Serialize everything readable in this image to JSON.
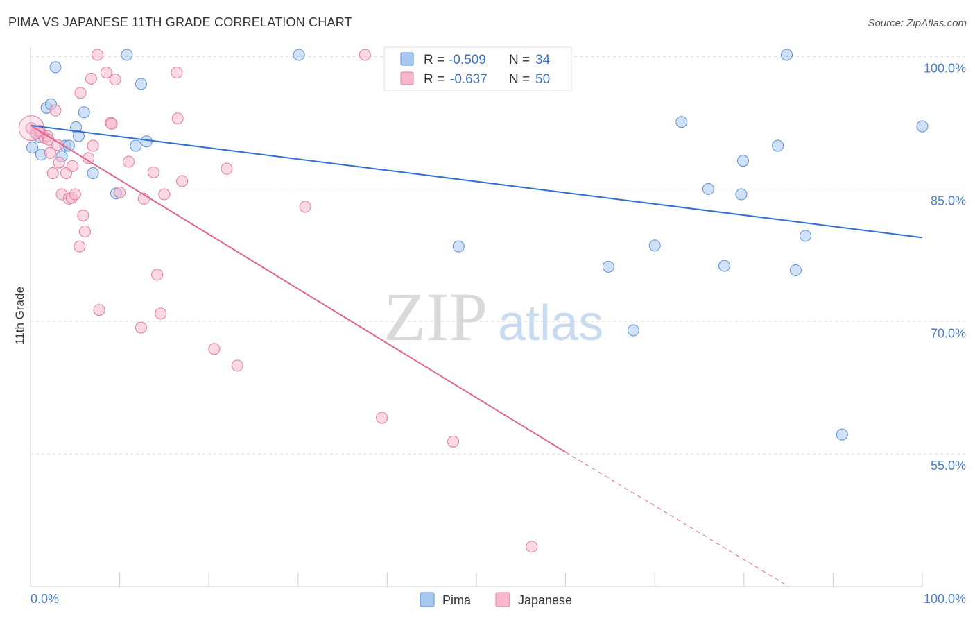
{
  "title": "PIMA VS JAPANESE 11TH GRADE CORRELATION CHART",
  "source": "Source: ZipAtlas.com",
  "watermark": {
    "zip": "ZIP",
    "atlas": "atlas"
  },
  "chart_data": {
    "type": "scatter",
    "ylabel": "11th Grade",
    "xlim": [
      0,
      100
    ],
    "ylim": [
      40,
      100
    ],
    "y_ticks": [
      {
        "value": 100,
        "label": "100.0%"
      },
      {
        "value": 85,
        "label": "85.0%"
      },
      {
        "value": 70,
        "label": "70.0%"
      },
      {
        "value": 55,
        "label": "55.0%"
      }
    ],
    "x_tick_labels": {
      "left": "0.0%",
      "right": "100.0%"
    },
    "legend": {
      "r_label": "R =",
      "n_label": "N =",
      "entries": [
        {
          "name": "Pima",
          "r": "-0.509",
          "n": "34",
          "color": "#a9c8f0",
          "stroke": "#5a8fd6"
        },
        {
          "name": "Japanese",
          "r": "-0.637",
          "n": "50",
          "color": "#f7b8cc",
          "stroke": "#e07aa0"
        }
      ]
    },
    "series": [
      {
        "name": "Pima",
        "color": "#a9c8f0",
        "stroke": "#5a8fd6",
        "line_color": "#2f6fd0",
        "trend": {
          "x0": 0,
          "y0": 92.2,
          "x1": 100,
          "y1": 79.5
        },
        "points": [
          [
            0.2,
            89.7
          ],
          [
            1.2,
            88.9
          ],
          [
            1.8,
            94.2
          ],
          [
            2.3,
            94.6
          ],
          [
            2.8,
            98.8
          ],
          [
            3.5,
            88.7
          ],
          [
            3.9,
            89.9
          ],
          [
            4.3,
            89.9
          ],
          [
            5.1,
            92.0
          ],
          [
            5.4,
            91.0
          ],
          [
            6.0,
            93.7
          ],
          [
            7.0,
            86.8
          ],
          [
            9.6,
            84.5
          ],
          [
            10.8,
            100.2
          ],
          [
            11.8,
            89.9
          ],
          [
            12.4,
            96.9
          ],
          [
            13.0,
            90.4
          ],
          [
            30.1,
            100.2
          ],
          [
            48.0,
            78.5
          ],
          [
            64.8,
            76.2
          ],
          [
            67.6,
            69.0
          ],
          [
            70.0,
            78.6
          ],
          [
            73.0,
            92.6
          ],
          [
            76.0,
            85.0
          ],
          [
            77.8,
            76.3
          ],
          [
            79.7,
            84.4
          ],
          [
            79.9,
            88.2
          ],
          [
            83.8,
            89.9
          ],
          [
            84.8,
            100.2
          ],
          [
            85.8,
            75.8
          ],
          [
            86.9,
            79.7
          ],
          [
            91.0,
            57.2
          ],
          [
            100.0,
            92.1
          ],
          [
            1.0,
            90.9
          ]
        ]
      },
      {
        "name": "Japanese",
        "color": "#f7b8cc",
        "stroke": "#e07aa0",
        "line_color": "#e06490",
        "trend": {
          "x0": 0,
          "y0": 92.2,
          "x1": 60,
          "y1": 55.2
        },
        "trend_dashed": {
          "x0": 60,
          "y0": 55.2,
          "x1": 85,
          "y1": 40.0
        },
        "points": [
          [
            0.1,
            91.9
          ],
          [
            0.6,
            91.3
          ],
          [
            1.2,
            91.3
          ],
          [
            1.6,
            90.8
          ],
          [
            1.9,
            91.0
          ],
          [
            2.2,
            89.1
          ],
          [
            2.5,
            86.8
          ],
          [
            2.8,
            93.9
          ],
          [
            3.2,
            88.0
          ],
          [
            3.5,
            84.4
          ],
          [
            4.0,
            86.8
          ],
          [
            4.3,
            83.9
          ],
          [
            4.6,
            84.0
          ],
          [
            4.7,
            87.6
          ],
          [
            5.0,
            84.4
          ],
          [
            5.5,
            78.5
          ],
          [
            5.6,
            95.9
          ],
          [
            5.9,
            82.0
          ],
          [
            6.1,
            80.2
          ],
          [
            6.5,
            88.5
          ],
          [
            6.8,
            97.5
          ],
          [
            7.0,
            89.9
          ],
          [
            7.5,
            100.2
          ],
          [
            7.7,
            71.3
          ],
          [
            8.5,
            98.2
          ],
          [
            9.0,
            92.5
          ],
          [
            9.1,
            92.4
          ],
          [
            9.5,
            97.4
          ],
          [
            10.0,
            84.6
          ],
          [
            11.0,
            88.1
          ],
          [
            12.4,
            69.3
          ],
          [
            12.7,
            83.9
          ],
          [
            13.8,
            86.9
          ],
          [
            14.2,
            75.3
          ],
          [
            14.6,
            70.9
          ],
          [
            15.0,
            84.4
          ],
          [
            16.4,
            98.2
          ],
          [
            16.5,
            93.0
          ],
          [
            17.0,
            85.9
          ],
          [
            20.6,
            66.9
          ],
          [
            22.0,
            87.3
          ],
          [
            23.2,
            65.0
          ],
          [
            30.8,
            83.0
          ],
          [
            37.5,
            100.2
          ],
          [
            39.4,
            59.1
          ],
          [
            47.4,
            56.4
          ],
          [
            56.2,
            44.5
          ],
          [
            2.0,
            90.6
          ],
          [
            1.0,
            91.6
          ],
          [
            3.0,
            90.0
          ]
        ]
      }
    ]
  }
}
